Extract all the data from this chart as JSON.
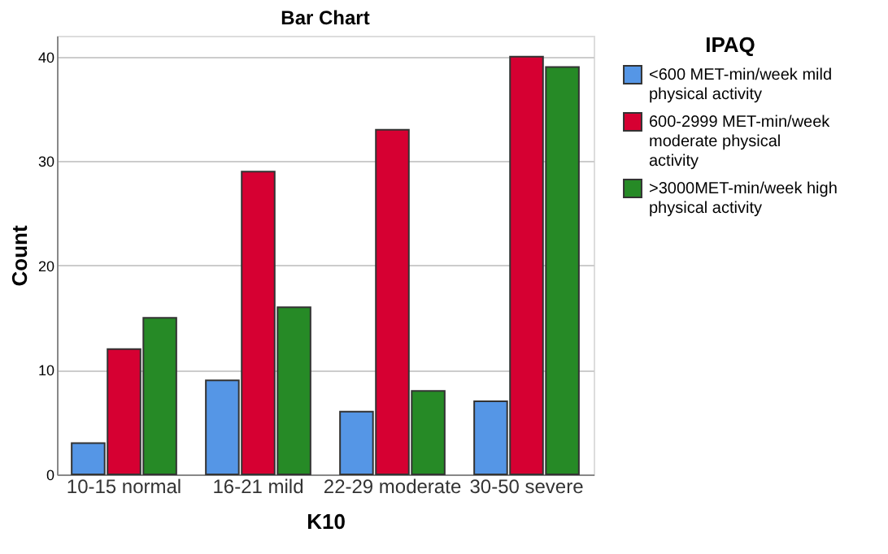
{
  "chart_data": {
    "type": "bar",
    "title": "Bar Chart",
    "xlabel": "K10",
    "ylabel": "Count",
    "legend_title": "IPAQ",
    "categories": [
      "10-15 normal",
      "16-21 mild",
      "22-29 moderate",
      "30-50 severe"
    ],
    "series": [
      {
        "name": "<600 MET-min/week mild physical activity",
        "color": "#5596e6",
        "values": [
          3,
          9,
          6,
          7
        ]
      },
      {
        "name": "600-2999 MET-min/week moderate physical activity",
        "color": "#d60032",
        "values": [
          12,
          29,
          33,
          40
        ]
      },
      {
        "name": ">3000MET-min/week high physical activity",
        "color": "#268a26",
        "values": [
          15,
          16,
          8,
          39
        ]
      }
    ],
    "ylim": [
      0,
      42
    ],
    "yticks": [
      0,
      10,
      20,
      30,
      40
    ],
    "grid": "y",
    "legend": "top right"
  }
}
